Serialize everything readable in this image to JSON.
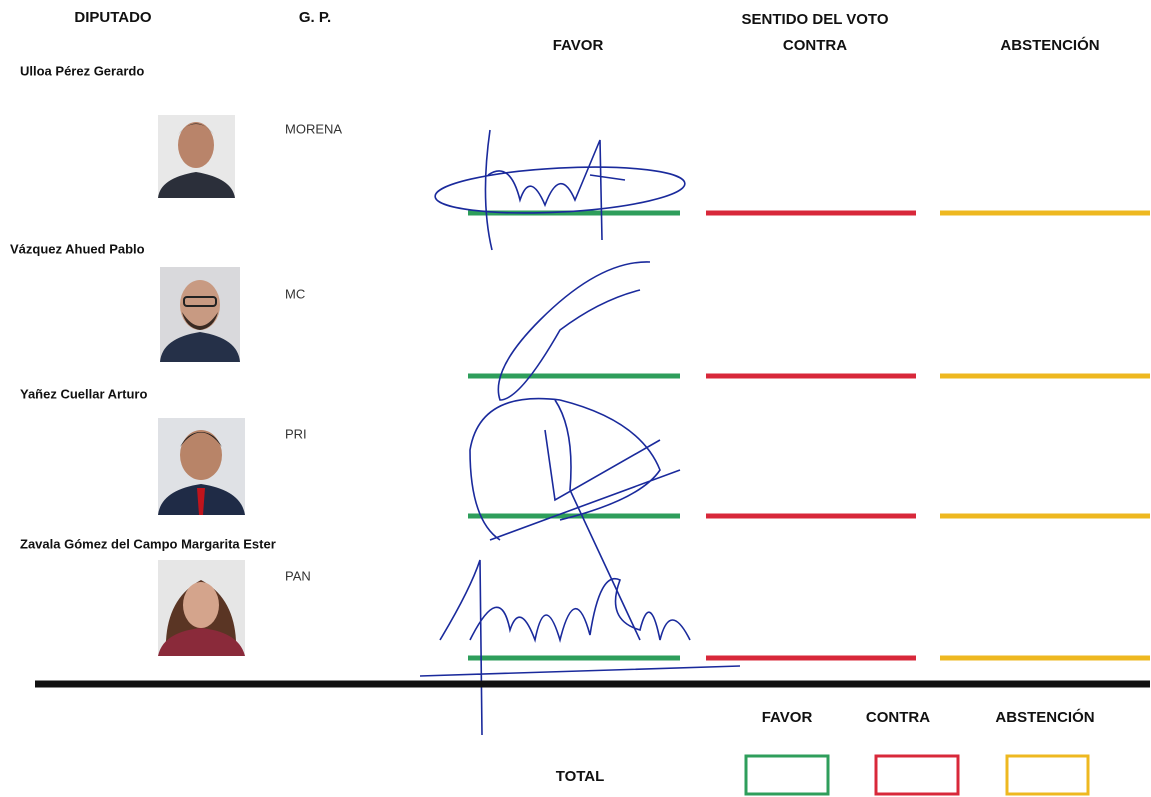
{
  "headers": {
    "diputado": "DIPUTADO",
    "gp": "G. P.",
    "sentido": "SENTIDO DEL VOTO",
    "favor": "FAVOR",
    "contra": "CONTRA",
    "abstencion": "ABSTENCIÓN"
  },
  "rows": [
    {
      "name": "Ulloa Pérez Gerardo",
      "party": "MORENA"
    },
    {
      "name": "Vázquez Ahued Pablo",
      "party": "MC"
    },
    {
      "name": "Yañez Cuellar Arturo",
      "party": "PRI"
    },
    {
      "name": "Zavala Gómez del Campo Margarita Ester",
      "party": "PAN"
    }
  ],
  "totals": {
    "favor": "FAVOR",
    "contra": "CONTRA",
    "abstencion": "ABSTENCIÓN",
    "total": "TOTAL"
  }
}
